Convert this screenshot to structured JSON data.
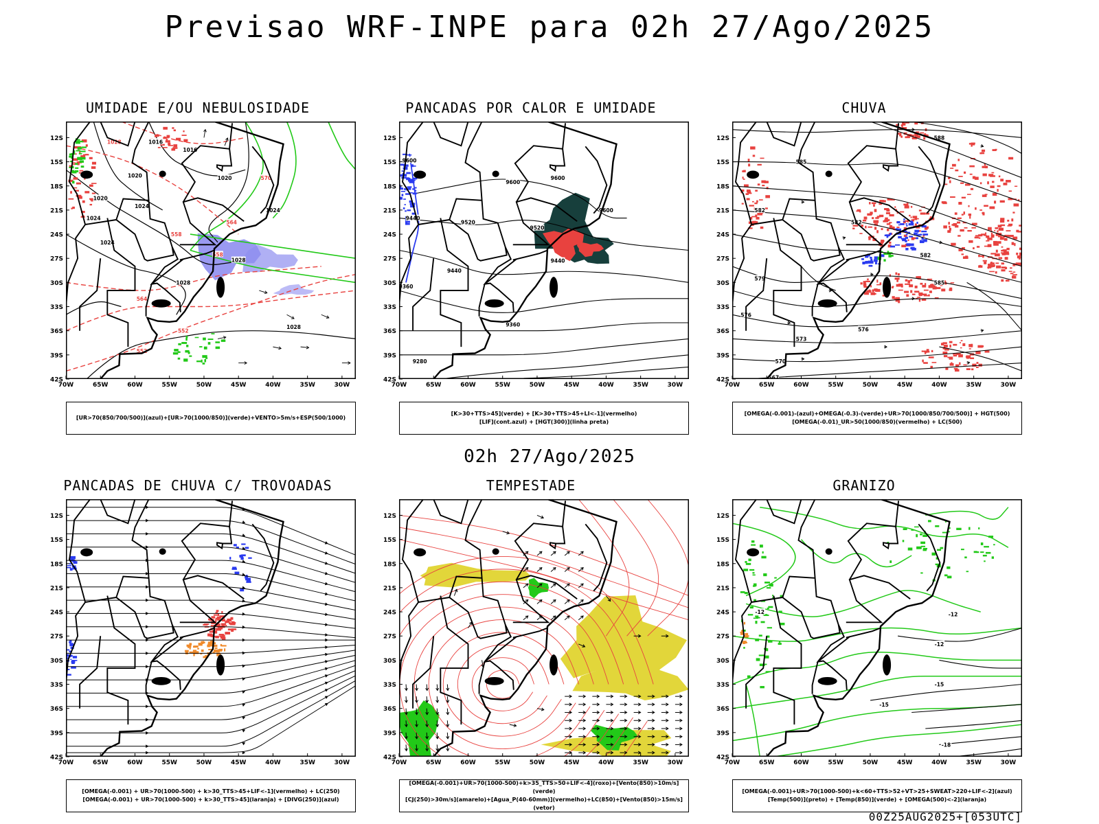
{
  "title": "Previsao WRF-INPE  para 02h 27/Ago/2025",
  "mid_time": "02h 27/Ago/2025",
  "footer": "00Z25AUG2025+[053UTC]",
  "axes": {
    "lat_labels": [
      "12S",
      "15S",
      "18S",
      "21S",
      "24S",
      "27S",
      "30S",
      "33S",
      "36S",
      "39S",
      "42S"
    ],
    "lon_labels": [
      "70W",
      "65W",
      "60W",
      "55W",
      "50W",
      "45W",
      "40W",
      "35W",
      "30W"
    ]
  },
  "colors": {
    "red": "#e8423f",
    "green": "#22c918",
    "blue": "#2a3bf0",
    "lavender": "#8f8ef0",
    "darkteal": "#173f3c",
    "yellow": "#e2d63a",
    "orange": "#f08a2a"
  },
  "panels": [
    {
      "id": "umidade",
      "title": "UMIDADE E/OU NEBULOSIDADE",
      "legend": [
        "[UR>70(850/700/500)](azul)+[UR>70(1000/850)](verde)+VENTO>5m/s+ESP(500/1000)"
      ],
      "labels": [
        "1016",
        "1016",
        "1020",
        "1020",
        "1020",
        "1024",
        "1024",
        "1024",
        "1024",
        "1028",
        "1028",
        "1028",
        "1028",
        "570",
        "564",
        "558",
        "552",
        "552",
        "558",
        "564",
        "576",
        "552"
      ]
    },
    {
      "id": "pancadas_calor",
      "title": "PANCADAS POR CALOR E UMIDADE",
      "legend": [
        "[K>30+TTS>45](verde) + [K>30+TTS>45+LI<-1](vermelho)",
        "[LIF](cont.azul) + [HGT(300)](linha preta)"
      ],
      "labels": [
        "9600",
        "9600",
        "9600",
        "9600",
        "9520",
        "9520",
        "9440",
        "9440",
        "9440",
        "9360",
        "9360",
        "9280"
      ]
    },
    {
      "id": "chuva",
      "title": "CHUVA",
      "legend": [
        "[OMEGA(-0.001)-(azul)+OMEGA(-0.3)-(verde)+UR>70(1000/850/700/500)] + HGT(500)",
        "[OMEGA(-0.01)_UR>50(1000/850)(vermelho) + LC(500)"
      ],
      "labels": [
        "588",
        "585",
        "582",
        "582",
        "579",
        "576",
        "576",
        "573",
        "570",
        "567",
        "585"
      ]
    },
    {
      "id": "pancadas_trovoadas",
      "title": "PANCADAS DE CHUVA C/ TROVOADAS",
      "legend": [
        "[OMEGA(-0.001) + UR>70(1000-500) + k>30_TTS>45+LIF<-1](vermelho) + LC(250)",
        "[OMEGA(-0.001) + UR>70(1000-500) + k>30_TTS>45](laranja) + [DIVG(250)](azul)"
      ],
      "labels": []
    },
    {
      "id": "tempestade",
      "title": "TEMPESTADE",
      "legend": [
        "[OMEGA(-0.001)+UR>70(1000-500)+k>35_TTS>50+LIF<-4](roxo)+[Vento(850)>10m/s](verde)",
        "[CJ(250)>30m/s](amarelo)+[Agua_P(40-60mm)](vermelho)+LC(850)+[Vento(850)>15m/s](vetor)"
      ],
      "labels": []
    },
    {
      "id": "granizo",
      "title": "GRANIZO",
      "legend": [
        "[OMEGA(-0.001)+UR>70(1000-500)+k<60+TTS>52+VT>25+SWEAT>220+LIF<-2](azul)",
        "[Temp(500)](preto) + [Temp(850)](verde) + [OMEGA(500)<-2](laranja)"
      ],
      "labels": [
        "-12",
        "-12",
        "-12",
        "-15",
        "-18",
        "-15"
      ]
    }
  ]
}
